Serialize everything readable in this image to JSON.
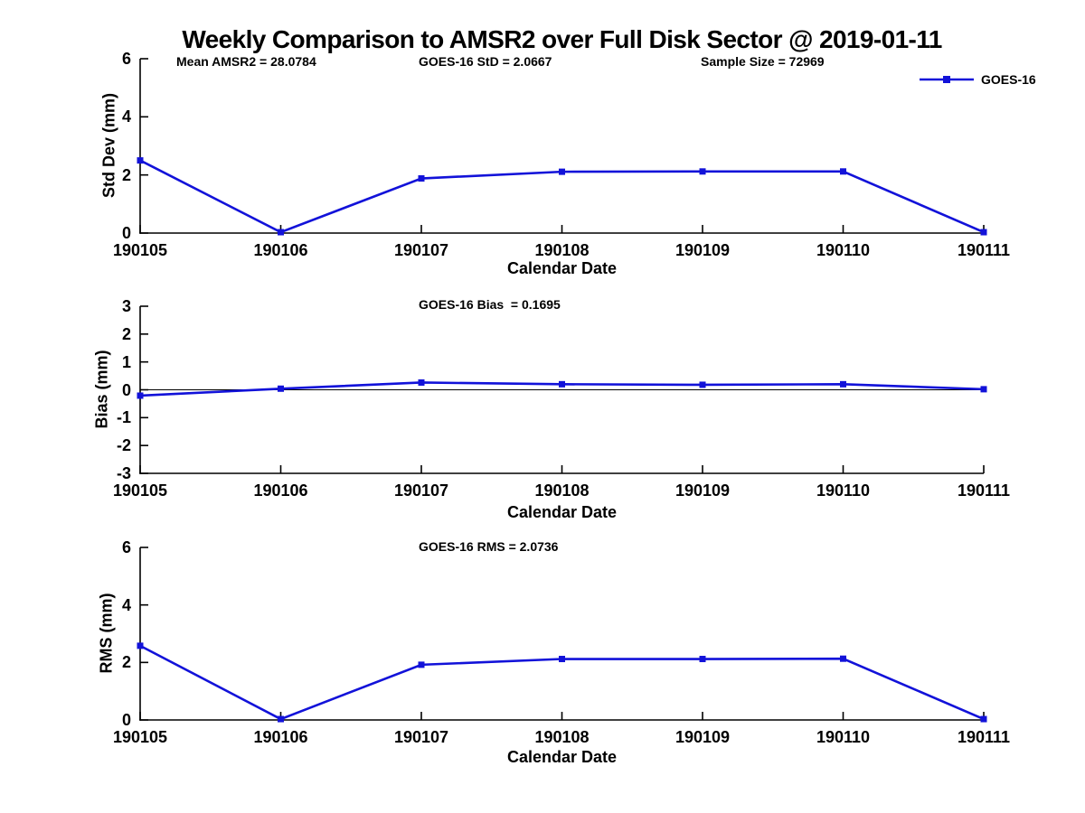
{
  "figure": {
    "title": "Weekly Comparison to AMSR2 over Full Disk Sector @ 2019-01-11",
    "background_color": "#ffffff",
    "line_color": "#1212d9",
    "axis_color": "#000000"
  },
  "legend": {
    "label": "GOES-16",
    "marker": "filled-square",
    "position": "top-right"
  },
  "chart_data": [
    {
      "type": "line",
      "title": "",
      "ylabel": "Std Dev (mm)",
      "xlabel": "Calendar Date",
      "categories": [
        "190105",
        "190106",
        "190107",
        "190108",
        "190109",
        "190110",
        "190111"
      ],
      "series": [
        {
          "name": "GOES-16",
          "color": "#1212d9",
          "marker": "square",
          "values": [
            2.5,
            0.03,
            1.88,
            2.11,
            2.12,
            2.12,
            0.03
          ]
        }
      ],
      "ylim": [
        0,
        6
      ],
      "yticks": [
        0,
        2,
        4,
        6
      ],
      "grid": false,
      "zero_line": false,
      "annotations": [
        {
          "text": "Mean AMSR2 = 28.0784"
        },
        {
          "text": "GOES-16 StD = 2.0667"
        },
        {
          "text": "Sample Size = 72969"
        }
      ]
    },
    {
      "type": "line",
      "title": "",
      "ylabel": "Bias (mm)",
      "xlabel": "Calendar Date",
      "categories": [
        "190105",
        "190106",
        "190107",
        "190108",
        "190109",
        "190110",
        "190111"
      ],
      "series": [
        {
          "name": "GOES-16",
          "color": "#1212d9",
          "marker": "square",
          "values": [
            -0.21,
            0.04,
            0.26,
            0.2,
            0.18,
            0.2,
            0.02
          ]
        }
      ],
      "ylim": [
        -3,
        3
      ],
      "yticks": [
        -3,
        -2,
        -1,
        0,
        1,
        2,
        3
      ],
      "grid": false,
      "zero_line": true,
      "annotations": [
        {
          "text": "GOES-16 Bias  = 0.1695"
        }
      ]
    },
    {
      "type": "line",
      "title": "",
      "ylabel": "RMS (mm)",
      "xlabel": "Calendar Date",
      "categories": [
        "190105",
        "190106",
        "190107",
        "190108",
        "190109",
        "190110",
        "190111"
      ],
      "series": [
        {
          "name": "GOES-16",
          "color": "#1212d9",
          "marker": "square",
          "values": [
            2.58,
            0.03,
            1.92,
            2.12,
            2.12,
            2.13,
            0.03
          ]
        }
      ],
      "ylim": [
        0,
        6
      ],
      "yticks": [
        0,
        2,
        4,
        6
      ],
      "grid": false,
      "zero_line": false,
      "annotations": [
        {
          "text": "GOES-16 RMS = 2.0736"
        }
      ]
    }
  ]
}
